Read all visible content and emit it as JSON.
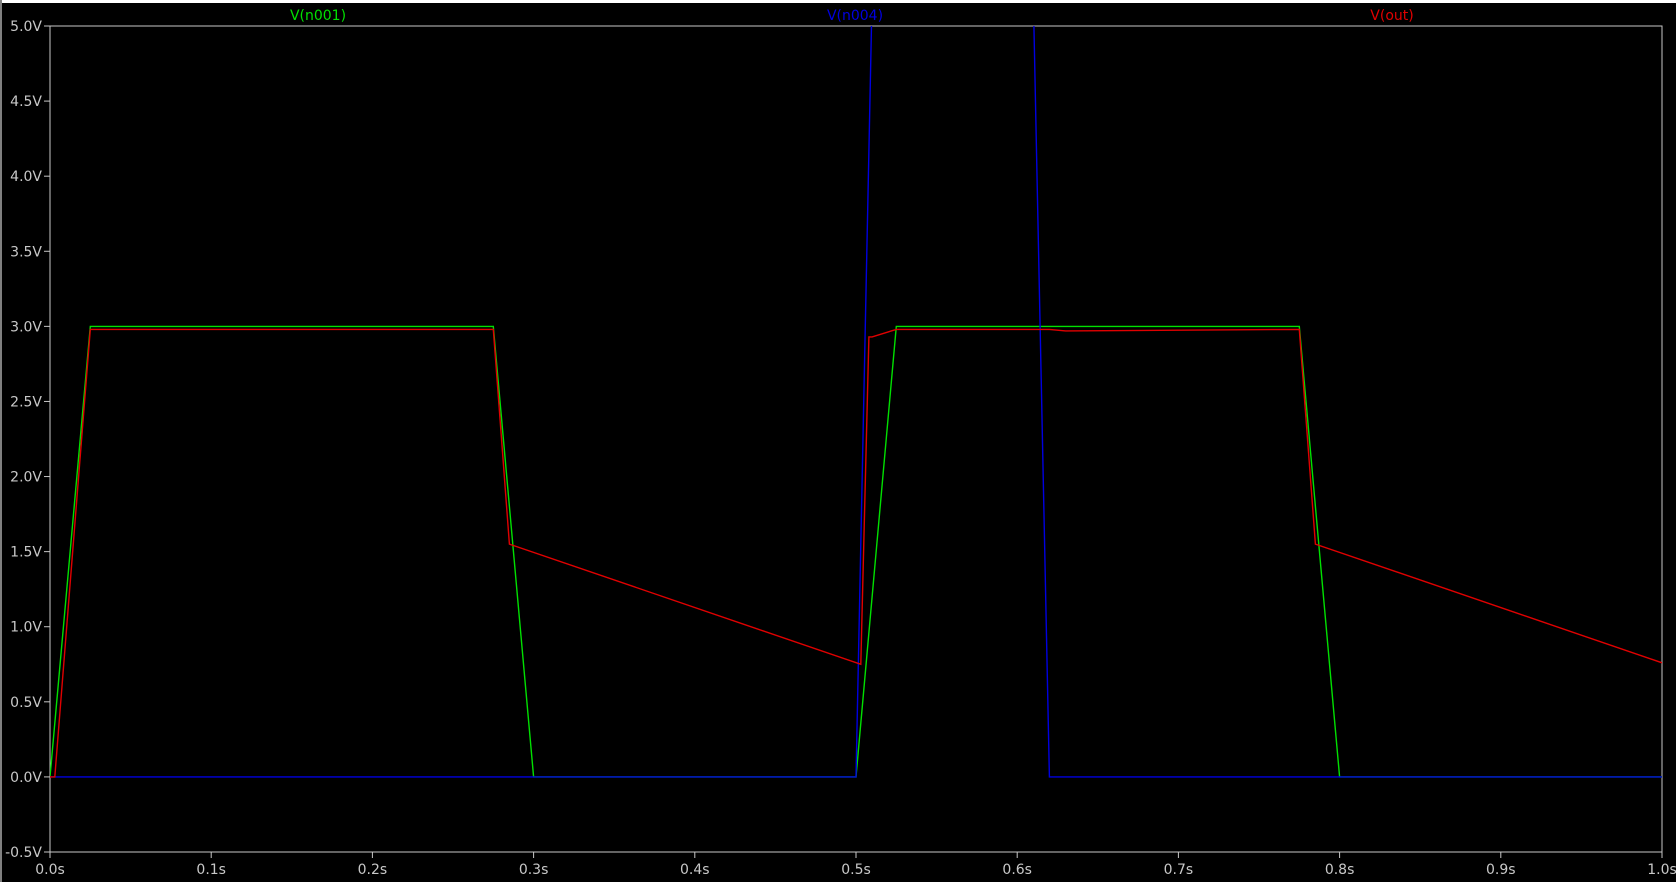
{
  "chart_data": {
    "type": "line",
    "title": "",
    "xlabel": "",
    "ylabel": "",
    "xlim": [
      0,
      1.0
    ],
    "ylim": [
      -0.5,
      5.0
    ],
    "grid": false,
    "legend": "top",
    "background": "#000000",
    "x_ticks": [
      {
        "v": 0.0,
        "label": "0.0s"
      },
      {
        "v": 0.1,
        "label": "0.1s"
      },
      {
        "v": 0.2,
        "label": "0.2s"
      },
      {
        "v": 0.3,
        "label": "0.3s"
      },
      {
        "v": 0.4,
        "label": "0.4s"
      },
      {
        "v": 0.5,
        "label": "0.5s"
      },
      {
        "v": 0.6,
        "label": "0.6s"
      },
      {
        "v": 0.7,
        "label": "0.7s"
      },
      {
        "v": 0.8,
        "label": "0.8s"
      },
      {
        "v": 0.9,
        "label": "0.9s"
      },
      {
        "v": 1.0,
        "label": "1.0s"
      }
    ],
    "y_ticks": [
      {
        "v": 5.0,
        "label": "5.0V"
      },
      {
        "v": 4.5,
        "label": "4.5V"
      },
      {
        "v": 4.0,
        "label": "4.0V"
      },
      {
        "v": 3.5,
        "label": "3.5V"
      },
      {
        "v": 3.0,
        "label": "3.0V"
      },
      {
        "v": 2.5,
        "label": "2.5V"
      },
      {
        "v": 2.0,
        "label": "2.0V"
      },
      {
        "v": 1.5,
        "label": "1.5V"
      },
      {
        "v": 1.0,
        "label": "1.0V"
      },
      {
        "v": 0.5,
        "label": "0.5V"
      },
      {
        "v": 0.0,
        "label": "0.0V"
      },
      {
        "v": -0.5,
        "label": "-0.5V"
      }
    ],
    "series": [
      {
        "name": "V(n001)",
        "color": "#00e000",
        "x": [
          0,
          0.025,
          0.275,
          0.3,
          0.5,
          0.525,
          0.775,
          0.8,
          1.0
        ],
        "y": [
          0,
          3.0,
          3.0,
          0,
          0,
          3.0,
          3.0,
          0,
          0
        ]
      },
      {
        "name": "V(n004)",
        "color": "#0000e0",
        "x": [
          0,
          0.5,
          0.51,
          0.61,
          0.62,
          1.0
        ],
        "y": [
          0,
          0,
          5.2,
          5.2,
          0,
          0
        ]
      },
      {
        "name": "V(out)",
        "color": "#e00000",
        "x": [
          0,
          0.003,
          0.025,
          0.275,
          0.285,
          0.503,
          0.508,
          0.51,
          0.525,
          0.62,
          0.63,
          0.775,
          0.785,
          1.0
        ],
        "y": [
          0,
          0,
          2.98,
          2.98,
          1.55,
          0.75,
          2.93,
          2.93,
          2.98,
          2.98,
          2.97,
          2.98,
          1.55,
          0.76
        ]
      }
    ]
  }
}
